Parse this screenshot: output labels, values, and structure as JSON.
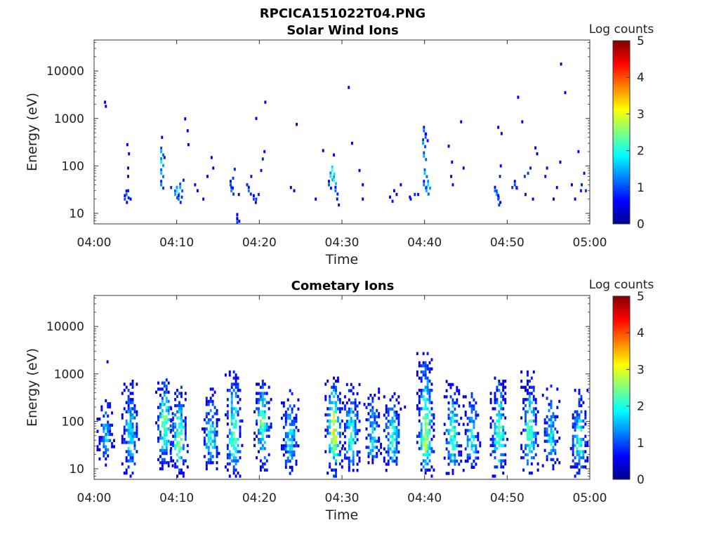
{
  "figure": {
    "title": "RPCICA151022T04.PNG"
  },
  "colors": {
    "colormap": [
      "#00008f",
      "#0000ff",
      "#0080ff",
      "#00ffff",
      "#80ff80",
      "#ffff00",
      "#ff8000",
      "#ff0000",
      "#800000"
    ],
    "axis": "#333333",
    "background": "#ffffff"
  },
  "chart_data": [
    {
      "type": "heatmap",
      "title": "Solar Wind Ions",
      "xlabel": "Time",
      "ylabel": "Energy (eV)",
      "yscale": "log",
      "ylim": [
        6,
        45000
      ],
      "xlim": [
        "04:00",
        "05:00"
      ],
      "x_ticks": [
        "04:00",
        "04:10",
        "04:20",
        "04:30",
        "04:40",
        "04:50",
        "05:00"
      ],
      "y_ticks": [
        "10",
        "100",
        "1000",
        "10000"
      ],
      "colorbar": {
        "label": "Log counts",
        "range": [
          0,
          5
        ],
        "ticks": [
          "0",
          "1",
          "2",
          "3",
          "4",
          "5"
        ]
      },
      "grid": false,
      "cells": [
        [
          1.2,
          2200,
          0.5
        ],
        [
          1.3,
          1800,
          0.6
        ],
        [
          3.6,
          20,
          1.0
        ],
        [
          3.8,
          25,
          1.2
        ],
        [
          4.0,
          30,
          0.8
        ],
        [
          4.0,
          60,
          0.6
        ],
        [
          4.0,
          90,
          0.5
        ],
        [
          3.9,
          280,
          0.6
        ],
        [
          4.1,
          180,
          0.5
        ],
        [
          4.3,
          20,
          0.7
        ],
        [
          8.0,
          40,
          1.3
        ],
        [
          8.0,
          70,
          1.6
        ],
        [
          8.0,
          120,
          1.8
        ],
        [
          8.0,
          200,
          1.5
        ],
        [
          8.1,
          400,
          0.6
        ],
        [
          8.4,
          150,
          0.7
        ],
        [
          9.2,
          35,
          0.8
        ],
        [
          9.7,
          25,
          1.4
        ],
        [
          9.9,
          30,
          1.9
        ],
        [
          10.1,
          20,
          1.2
        ],
        [
          10.3,
          35,
          1.5
        ],
        [
          10.5,
          22,
          0.9
        ],
        [
          10.7,
          50,
          0.8
        ],
        [
          10.9,
          980,
          0.5
        ],
        [
          11.2,
          550,
          0.5
        ],
        [
          11.3,
          280,
          0.5
        ],
        [
          12.1,
          40,
          0.6
        ],
        [
          12.4,
          30,
          0.5
        ],
        [
          13.1,
          20,
          0.7
        ],
        [
          13.6,
          60,
          0.6
        ],
        [
          14.1,
          150,
          0.5
        ],
        [
          14.3,
          90,
          0.5
        ],
        [
          16.4,
          40,
          1.0
        ],
        [
          16.5,
          30,
          1.3
        ],
        [
          16.7,
          55,
          0.9
        ],
        [
          16.9,
          85,
          0.8
        ],
        [
          17.2,
          8,
          1.1
        ],
        [
          17.2,
          6.5,
          1.0
        ],
        [
          17.4,
          25,
          0.6
        ],
        [
          18.4,
          40,
          0.8
        ],
        [
          18.6,
          30,
          1.2
        ],
        [
          18.9,
          60,
          0.7
        ],
        [
          19.2,
          20,
          1.0
        ],
        [
          19.5,
          20,
          0.9
        ],
        [
          19.8,
          25,
          0.8
        ],
        [
          20.1,
          80,
          0.7
        ],
        [
          20.3,
          140,
          0.8
        ],
        [
          20.5,
          200,
          0.6
        ],
        [
          20.6,
          2200,
          0.5
        ],
        [
          19.5,
          1000,
          0.5
        ],
        [
          23.7,
          35,
          0.5
        ],
        [
          24.1,
          30,
          0.6
        ],
        [
          24.4,
          750,
          0.5
        ],
        [
          26.7,
          20,
          0.6
        ],
        [
          27.6,
          210,
          0.5
        ],
        [
          28.3,
          40,
          1.1
        ],
        [
          28.5,
          60,
          1.8
        ],
        [
          28.7,
          80,
          2.2
        ],
        [
          28.9,
          50,
          2.0
        ],
        [
          29.1,
          30,
          1.2
        ],
        [
          29.3,
          20,
          0.7
        ],
        [
          29.5,
          15,
          0.7
        ],
        [
          28.9,
          170,
          0.6
        ],
        [
          30.7,
          4500,
          0.5
        ],
        [
          31.1,
          300,
          0.5
        ],
        [
          32.0,
          80,
          0.6
        ],
        [
          32.4,
          40,
          0.6
        ],
        [
          32.4,
          20,
          0.5
        ],
        [
          35.7,
          22,
          0.6
        ],
        [
          36.0,
          18,
          0.7
        ],
        [
          36.2,
          30,
          0.6
        ],
        [
          36.5,
          25,
          0.6
        ],
        [
          37.0,
          40,
          0.6
        ],
        [
          38.1,
          22,
          0.5
        ],
        [
          38.2,
          20,
          0.7
        ],
        [
          38.7,
          25,
          0.8
        ],
        [
          39.1,
          25,
          0.7
        ],
        [
          39.8,
          40,
          1.2
        ],
        [
          39.9,
          70,
          1.6
        ],
        [
          39.8,
          160,
          1.5
        ],
        [
          39.7,
          300,
          1.4
        ],
        [
          39.8,
          550,
          1.2
        ],
        [
          40.0,
          400,
          1.1
        ],
        [
          40.1,
          30,
          1.5
        ],
        [
          40.3,
          40,
          1.8
        ],
        [
          42.8,
          260,
          0.5
        ],
        [
          43.2,
          120,
          0.6
        ],
        [
          43.1,
          60,
          0.6
        ],
        [
          43.3,
          40,
          0.7
        ],
        [
          44.3,
          850,
          0.5
        ],
        [
          44.6,
          90,
          0.6
        ],
        [
          48.4,
          30,
          1.2
        ],
        [
          48.6,
          25,
          1.5
        ],
        [
          48.8,
          20,
          1.0
        ],
        [
          49.0,
          60,
          0.8
        ],
        [
          49.1,
          100,
          0.6
        ],
        [
          48.9,
          15,
          0.9
        ],
        [
          48.8,
          650,
          0.5
        ],
        [
          49.2,
          480,
          0.5
        ],
        [
          50.5,
          35,
          0.9
        ],
        [
          50.8,
          40,
          1.0
        ],
        [
          51.0,
          35,
          0.8
        ],
        [
          51.2,
          2800,
          0.5
        ],
        [
          51.7,
          850,
          0.5
        ],
        [
          52.0,
          60,
          0.9
        ],
        [
          52.1,
          25,
          0.7
        ],
        [
          52.4,
          70,
          0.9
        ],
        [
          52.7,
          90,
          0.8
        ],
        [
          53.0,
          20,
          0.6
        ],
        [
          53.3,
          240,
          0.6
        ],
        [
          53.5,
          180,
          0.5
        ],
        [
          54.5,
          60,
          0.7
        ],
        [
          54.7,
          90,
          0.6
        ],
        [
          55.5,
          20,
          0.5
        ],
        [
          55.9,
          35,
          0.5
        ],
        [
          56.3,
          120,
          0.5
        ],
        [
          56.4,
          14000,
          0.5
        ],
        [
          56.9,
          3500,
          0.5
        ],
        [
          57.7,
          40,
          0.6
        ],
        [
          58.1,
          20,
          0.5
        ],
        [
          58.5,
          200,
          0.5
        ],
        [
          58.8,
          30,
          0.7
        ],
        [
          58.9,
          40,
          0.8
        ],
        [
          59.2,
          70,
          0.7
        ],
        [
          59.4,
          30,
          0.9
        ]
      ]
    },
    {
      "type": "heatmap",
      "title": "Cometary Ions",
      "xlabel": "Time",
      "ylabel": "Energy (eV)",
      "yscale": "log",
      "ylim": [
        6,
        45000
      ],
      "xlim": [
        "04:00",
        "05:00"
      ],
      "x_ticks": [
        "04:00",
        "04:10",
        "04:20",
        "04:30",
        "04:40",
        "04:50",
        "05:00"
      ],
      "y_ticks": [
        "10",
        "100",
        "1000",
        "10000"
      ],
      "colorbar": {
        "label": "Log counts",
        "range": [
          0,
          5
        ],
        "ticks": [
          "0",
          "1",
          "2",
          "3",
          "4",
          "5"
        ]
      },
      "grid": false,
      "bursts": [
        {
          "t": 1.3,
          "peak": 45,
          "top": 400,
          "amp": 1.6,
          "lo": 12,
          "extra": [
            [
              1.5,
              1800,
              0.5
            ]
          ]
        },
        {
          "t": 4.3,
          "peak": 40,
          "top": 800,
          "amp": 1.8,
          "lo": 7,
          "extra": []
        },
        {
          "t": 8.4,
          "peak": 90,
          "top": 800,
          "amp": 2.4,
          "lo": 10,
          "extra": []
        },
        {
          "t": 10.2,
          "peak": 30,
          "top": 600,
          "amp": 2.5,
          "lo": 7,
          "extra": []
        },
        {
          "t": 14.0,
          "peak": 40,
          "top": 500,
          "amp": 1.9,
          "lo": 10,
          "extra": []
        },
        {
          "t": 16.8,
          "peak": 35,
          "top": 1400,
          "amp": 2.3,
          "lo": 7,
          "extra": []
        },
        {
          "t": 20.3,
          "peak": 100,
          "top": 800,
          "amp": 2.2,
          "lo": 7,
          "extra": []
        },
        {
          "t": 23.6,
          "peak": 35,
          "top": 500,
          "amp": 1.8,
          "lo": 8,
          "extra": []
        },
        {
          "t": 28.9,
          "peak": 60,
          "top": 900,
          "amp": 3.0,
          "lo": 7,
          "extra": []
        },
        {
          "t": 31.0,
          "peak": 40,
          "top": 700,
          "amp": 2.1,
          "lo": 8,
          "extra": []
        },
        {
          "t": 33.6,
          "peak": 40,
          "top": 500,
          "amp": 1.7,
          "lo": 10,
          "extra": []
        },
        {
          "t": 36.0,
          "peak": 40,
          "top": 400,
          "amp": 2.1,
          "lo": 8,
          "extra": [
            [
              37.5,
              200,
              0.5
            ]
          ]
        },
        {
          "t": 40.0,
          "peak": 40,
          "top": 3200,
          "amp": 2.7,
          "lo": 7,
          "extra": []
        },
        {
          "t": 43.3,
          "peak": 40,
          "top": 700,
          "amp": 2.2,
          "lo": 8,
          "extra": []
        },
        {
          "t": 45.6,
          "peak": 40,
          "top": 500,
          "amp": 1.9,
          "lo": 8,
          "extra": []
        },
        {
          "t": 48.9,
          "peak": 40,
          "top": 900,
          "amp": 2.4,
          "lo": 7,
          "extra": []
        },
        {
          "t": 52.6,
          "peak": 50,
          "top": 1200,
          "amp": 2.3,
          "lo": 7,
          "extra": []
        },
        {
          "t": 55.2,
          "peak": 40,
          "top": 700,
          "amp": 1.8,
          "lo": 10,
          "extra": []
        },
        {
          "t": 58.6,
          "peak": 35,
          "top": 500,
          "amp": 2.1,
          "lo": 7,
          "extra": []
        }
      ]
    }
  ]
}
